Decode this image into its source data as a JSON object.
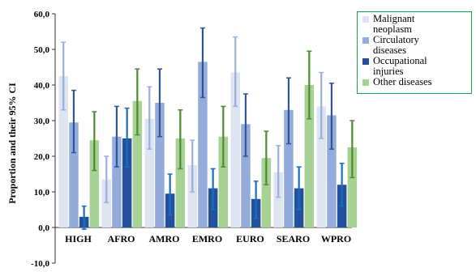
{
  "chart_data": {
    "type": "bar",
    "title": "",
    "xlabel": "",
    "ylabel": "Proportion and their 95% CI",
    "ylim": [
      -10,
      60
    ],
    "yticks": [
      "-10,0",
      "0,0",
      "10,0",
      "20,0",
      "30,0",
      "40,0",
      "50,0",
      "60,0"
    ],
    "ytick_values": [
      -10,
      0,
      10,
      20,
      30,
      40,
      50,
      60
    ],
    "categories": [
      "HIGH",
      "AFRO",
      "AMRO",
      "EMRO",
      "EURO",
      "SEARO",
      "WPRO"
    ],
    "legend_position": "top-right",
    "grid": false,
    "error_bars": "95% CI",
    "series": [
      {
        "name": "Malignant neoplasm",
        "color": "#dfe4f1",
        "error_color": "#9aaee0",
        "values": [
          42.5,
          13.5,
          30.5,
          17.5,
          43.5,
          15.5,
          34.0
        ],
        "ci_low": [
          33.0,
          7.0,
          22.0,
          10.0,
          34.0,
          8.5,
          25.0
        ],
        "ci_high": [
          52.0,
          20.0,
          39.5,
          24.5,
          53.5,
          23.0,
          43.5
        ]
      },
      {
        "name": "Circulatory diseases",
        "color": "#94acdb",
        "error_color": "#2f559a",
        "values": [
          29.5,
          25.5,
          35.0,
          46.5,
          29.0,
          33.0,
          31.5
        ],
        "ci_low": [
          21.0,
          17.0,
          25.5,
          36.5,
          20.0,
          23.5,
          22.0
        ],
        "ci_high": [
          38.5,
          34.0,
          44.5,
          56.0,
          37.5,
          42.0,
          40.5
        ]
      },
      {
        "name": "Occupational injuries",
        "color": "#22509a",
        "error_color": "#1b6dc0",
        "values": [
          3.0,
          25.0,
          9.5,
          11.0,
          8.0,
          11.0,
          12.0
        ],
        "ci_low": [
          -0.5,
          17.0,
          3.5,
          5.0,
          2.5,
          5.0,
          6.0
        ],
        "ci_high": [
          6.0,
          33.5,
          15.0,
          16.5,
          13.0,
          17.0,
          18.0
        ]
      },
      {
        "name": "Other diseases",
        "color": "#a6d293",
        "error_color": "#4f8a2f",
        "values": [
          24.5,
          35.5,
          25.0,
          25.5,
          19.5,
          40.0,
          22.5
        ],
        "ci_low": [
          16.0,
          26.0,
          16.5,
          17.0,
          12.0,
          30.5,
          14.0
        ],
        "ci_high": [
          32.5,
          44.5,
          33.0,
          34.0,
          27.0,
          49.5,
          30.0
        ]
      }
    ]
  },
  "legend": {
    "items": [
      {
        "label_lines": [
          "Malignant",
          "neoplasm"
        ]
      },
      {
        "label_lines": [
          "Circulatory",
          "diseases"
        ]
      },
      {
        "label_lines": [
          "Occupational",
          "injuries"
        ]
      },
      {
        "label_lines": [
          "Other diseases"
        ]
      }
    ]
  }
}
